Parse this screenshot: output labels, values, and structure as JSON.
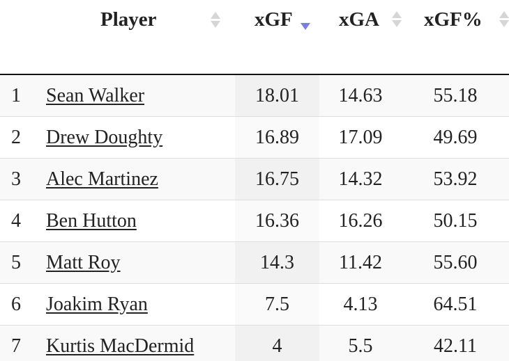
{
  "table": {
    "headers": {
      "rank": "",
      "player": "Player",
      "xgf": "xGF",
      "xga": "xGA",
      "xgf_pct": "xGF%"
    },
    "sort": {
      "column": "xgf",
      "direction": "descending"
    },
    "colors": {
      "sort_active": "#7b7fd8",
      "sort_inactive": "#d6d6d6"
    },
    "rows": [
      {
        "rank": "1",
        "player": "Sean Walker",
        "xgf": "18.01",
        "xga": "14.63",
        "xgf_pct": "55.18"
      },
      {
        "rank": "2",
        "player": "Drew Doughty",
        "xgf": "16.89",
        "xga": "17.09",
        "xgf_pct": "49.69"
      },
      {
        "rank": "3",
        "player": "Alec Martinez",
        "xgf": "16.75",
        "xga": "14.32",
        "xgf_pct": "53.92"
      },
      {
        "rank": "4",
        "player": "Ben Hutton",
        "xgf": "16.36",
        "xga": "16.26",
        "xgf_pct": "50.15"
      },
      {
        "rank": "5",
        "player": "Matt Roy",
        "xgf": "14.3",
        "xga": "11.42",
        "xgf_pct": "55.60"
      },
      {
        "rank": "6",
        "player": "Joakim Ryan",
        "xgf": "7.5",
        "xga": "4.13",
        "xgf_pct": "64.51"
      },
      {
        "rank": "7",
        "player": "Kurtis MacDermid",
        "xgf": "4",
        "xga": "5.5",
        "xgf_pct": "42.11"
      }
    ]
  }
}
